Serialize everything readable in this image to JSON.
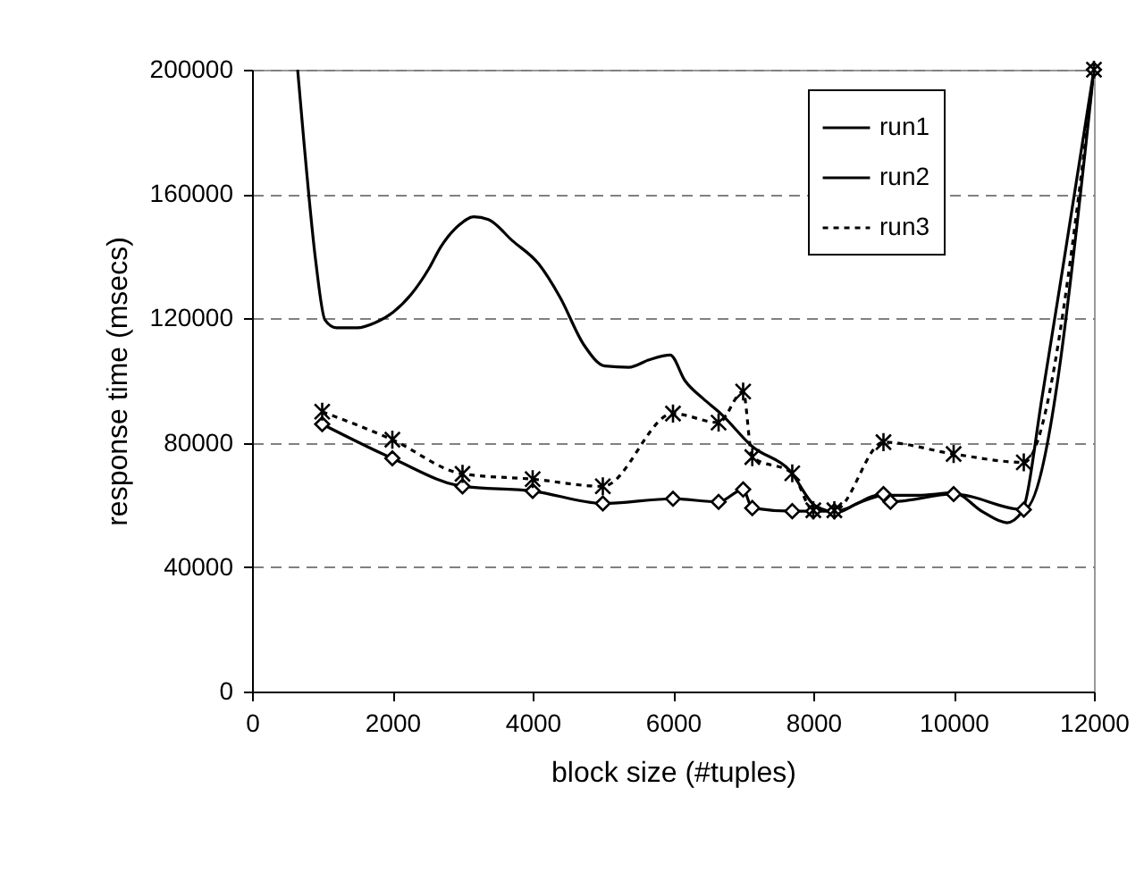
{
  "chart_data": {
    "type": "line",
    "xlabel": "block size (#tuples)",
    "ylabel": "response time (msecs)",
    "xlim": [
      0,
      12000
    ],
    "xticks": [
      0,
      2000,
      4000,
      6000,
      8000,
      10000,
      12000
    ],
    "ylim": [
      0,
      200000
    ],
    "yticks": [
      0,
      40000,
      80000,
      120000,
      160000,
      200000
    ],
    "grid": "y",
    "legend": "top right",
    "series": [
      {
        "name": "run1",
        "color": "#000000",
        "marker": "none",
        "line_style": "solid",
        "x": [
          650,
          740,
          910,
          1040,
          1200,
          1500,
          1760,
          2010,
          2270,
          2520,
          2690,
          2950,
          3160,
          3370,
          3710,
          4090,
          4390,
          4730,
          5030,
          5370,
          5660,
          5960,
          6170,
          6430,
          6680,
          7130,
          7660,
          8030,
          8340,
          8640,
          9020,
          9490,
          10000,
          10420,
          10760,
          10970,
          11270,
          11610,
          12000
        ],
        "values": [
          200000,
          176700,
          138000,
          119500,
          117000,
          117000,
          118700,
          122000,
          127800,
          136000,
          143000,
          150000,
          152700,
          151800,
          145000,
          137400,
          126800,
          111500,
          104700,
          104300,
          106700,
          108200,
          100000,
          94200,
          89400,
          78800,
          71200,
          59700,
          57700,
          60600,
          63100,
          63100,
          63900,
          57700,
          54300,
          57700,
          96000,
          144000,
          200000
        ]
      },
      {
        "name": "run2",
        "color": "#000000",
        "marker": "diamond",
        "line_style": "solid",
        "x": [
          1000,
          2000,
          3000,
          4000,
          5000,
          6000,
          6650,
          7000,
          7130,
          7700,
          8000,
          8300,
          9000,
          9100,
          10000,
          11000,
          12000
        ],
        "values": [
          86000,
          75000,
          66000,
          64500,
          60500,
          62000,
          61000,
          65000,
          59000,
          58000,
          58000,
          58000,
          63500,
          61000,
          63500,
          58500,
          200000
        ]
      },
      {
        "name": "run3",
        "color": "#000000",
        "marker": "cross",
        "line_style": "dotted",
        "x": [
          1000,
          2000,
          3000,
          4000,
          5000,
          6000,
          6650,
          7000,
          7130,
          7700,
          8000,
          8300,
          9000,
          10000,
          11000,
          12000
        ],
        "values": [
          90000,
          81000,
          70000,
          68300,
          66000,
          89400,
          86500,
          96500,
          75400,
          70200,
          58300,
          58300,
          80200,
          76400,
          73700,
          200000
        ]
      }
    ]
  }
}
